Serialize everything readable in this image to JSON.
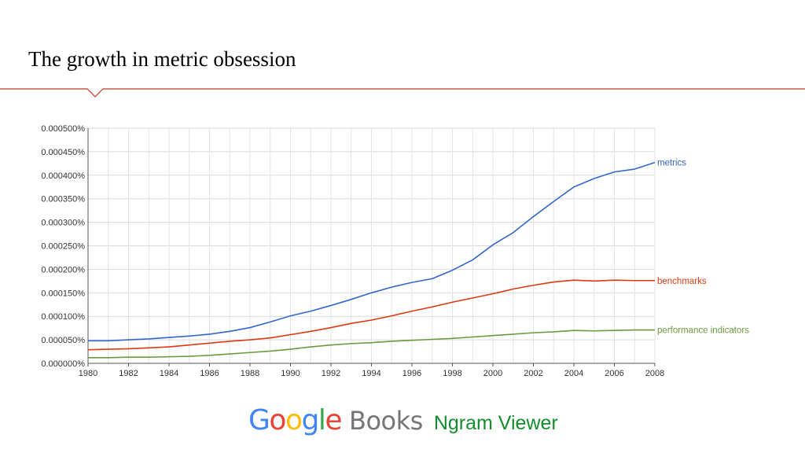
{
  "slide": {
    "title": "The growth in metric obsession"
  },
  "footer": {
    "logo_google": "Google",
    "logo_books": "Books",
    "product": "Ngram Viewer"
  },
  "colors": {
    "accent_rule": "#c0392b",
    "google_blue": "#4285f4",
    "google_red": "#ea4335",
    "google_yellow": "#fbbc05",
    "google_green": "#34a853"
  },
  "chart_data": {
    "type": "line",
    "title": "",
    "xlabel": "",
    "ylabel": "",
    "xlim": [
      1980,
      2008
    ],
    "ylim": [
      0,
      0.0005
    ],
    "grid": true,
    "legend": "end-of-line labels",
    "x_ticks": [
      1980,
      1982,
      1984,
      1986,
      1988,
      1990,
      1992,
      1994,
      1996,
      1998,
      2000,
      2002,
      2004,
      2006,
      2008
    ],
    "y_ticks": [
      "0.000000%",
      "0.000050%",
      "0.000100%",
      "0.000150%",
      "0.000200%",
      "0.000250%",
      "0.000300%",
      "0.000350%",
      "0.000400%",
      "0.000450%",
      "0.000500%"
    ],
    "x": [
      1980,
      1981,
      1982,
      1983,
      1984,
      1985,
      1986,
      1987,
      1988,
      1989,
      1990,
      1991,
      1992,
      1993,
      1994,
      1995,
      1996,
      1997,
      1998,
      1999,
      2000,
      2001,
      2002,
      2003,
      2004,
      2005,
      2006,
      2007,
      2008
    ],
    "series": [
      {
        "name": "metrics",
        "color": "#3366cc",
        "values": [
          4.8e-05,
          4.8e-05,
          5e-05,
          5.2e-05,
          5.5e-05,
          5.8e-05,
          6.2e-05,
          6.8e-05,
          7.6e-05,
          8.8e-05,
          0.000101,
          0.000111,
          0.000123,
          0.000136,
          0.00015,
          0.000162,
          0.000172,
          0.00018,
          0.000198,
          0.00022,
          0.000252,
          0.000278,
          0.000312,
          0.000344,
          0.000375,
          0.000393,
          0.000407,
          0.000413,
          0.000427
        ]
      },
      {
        "name": "benchmarks",
        "color": "#dc3912",
        "values": [
          2.9e-05,
          3e-05,
          3.1e-05,
          3.3e-05,
          3.5e-05,
          3.9e-05,
          4.3e-05,
          4.7e-05,
          5e-05,
          5.4e-05,
          6.1e-05,
          6.8e-05,
          7.6e-05,
          8.5e-05,
          9.2e-05,
          0.000101,
          0.000111,
          0.00012,
          0.00013,
          0.000139,
          0.000148,
          0.000158,
          0.000166,
          0.000173,
          0.000177,
          0.000175,
          0.000177,
          0.000176,
          0.000176
        ]
      },
      {
        "name": "performance indicators",
        "color": "#6b9a3e",
        "values": [
          1.2e-05,
          1.2e-05,
          1.3e-05,
          1.3e-05,
          1.4e-05,
          1.5e-05,
          1.7e-05,
          2e-05,
          2.3e-05,
          2.6e-05,
          3e-05,
          3.5e-05,
          3.9e-05,
          4.2e-05,
          4.4e-05,
          4.7e-05,
          4.9e-05,
          5.1e-05,
          5.3e-05,
          5.6e-05,
          5.9e-05,
          6.2e-05,
          6.5e-05,
          6.7e-05,
          7e-05,
          6.9e-05,
          7e-05,
          7.1e-05,
          7.1e-05
        ]
      }
    ]
  }
}
